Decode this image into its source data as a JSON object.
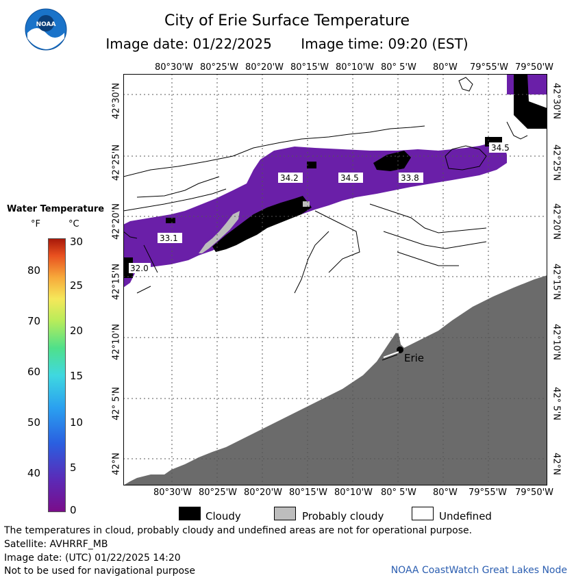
{
  "header": {
    "title": "City of Erie Surface Temperature",
    "image_date": "Image date: 01/22/2025",
    "image_time": "Image time: 09:20 (EST)"
  },
  "map": {
    "lon_labels": [
      "80°30'W",
      "80°25'W",
      "80°20'W",
      "80°15'W",
      "80°10'W",
      "80° 5'W",
      "80°W",
      "79°55'W",
      "79°50'W"
    ],
    "lat_labels": [
      "42°30'N",
      "42°25'N",
      "42°20'N",
      "42°15'N",
      "42°10'N",
      "42° 5'N",
      "42°N"
    ],
    "temperature_labels": [
      "33.1",
      "32.0",
      "34.2",
      "34.5",
      "33.8",
      "34.5"
    ],
    "city_label": "Erie",
    "colors": {
      "water_purple": "#6a1fa8",
      "land": "#6b6b6b",
      "cloudy": "#000000",
      "probably_cloudy": "#bdbdbd"
    }
  },
  "legend": {
    "title": "Water Temperature",
    "unit_f": "°F",
    "unit_c": "°C",
    "f_ticks": [
      "80",
      "70",
      "60",
      "50",
      "40"
    ],
    "c_ticks": [
      "30",
      "25",
      "20",
      "15",
      "10",
      "5",
      "0"
    ]
  },
  "key": {
    "cloudy": "Cloudy",
    "probably_cloudy": "Probably cloudy",
    "undefined": "Undefined"
  },
  "footer": {
    "line1": "The temperatures in cloud, probably cloudy and undefined areas are not for operational purpose.",
    "line2": "Satellite: AVHRRF_MB",
    "line3": "Image date: (UTC) 01/22/2025  14:20",
    "line4": "Not to be used for navigational purpose",
    "credit": "NOAA CoastWatch Great Lakes Node"
  }
}
